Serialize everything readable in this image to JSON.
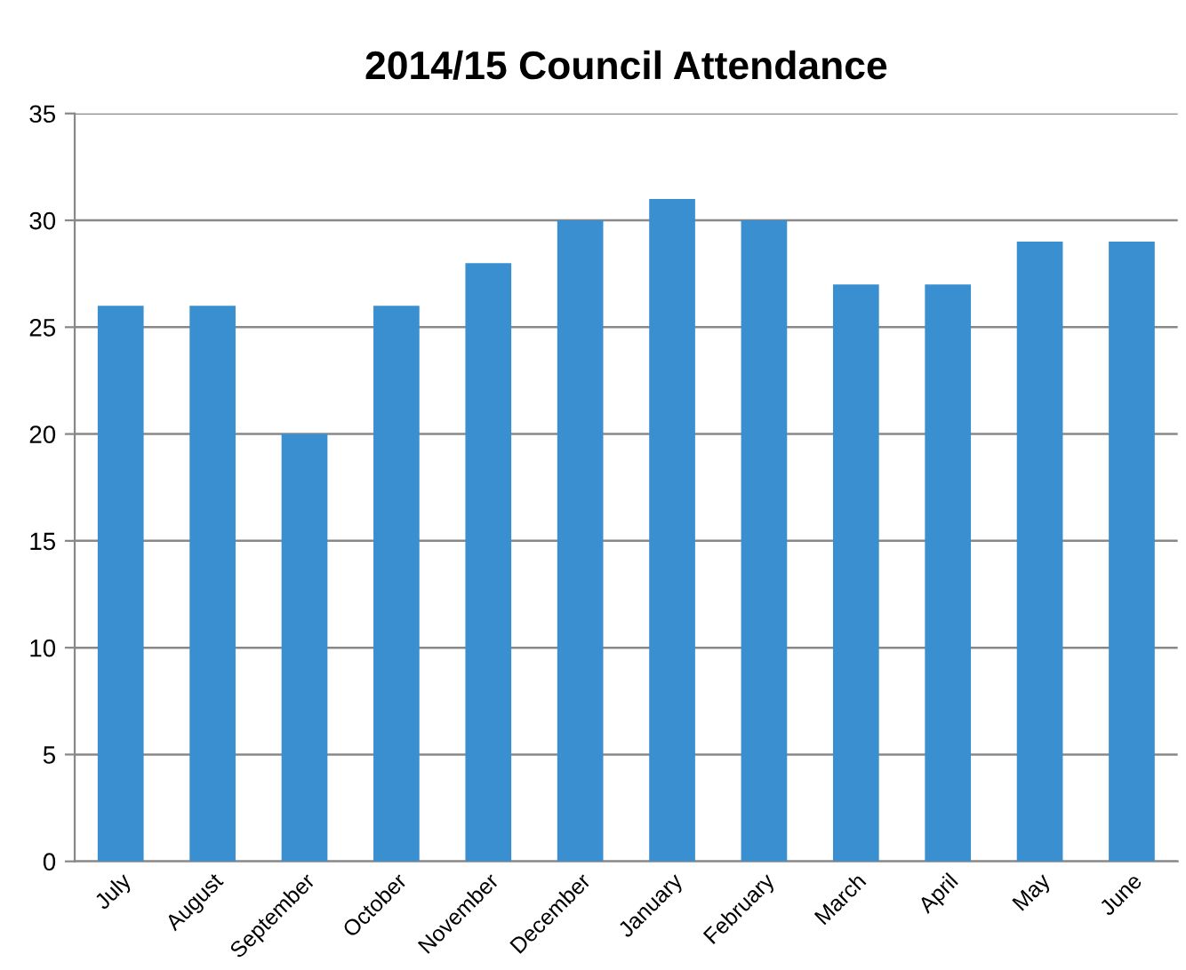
{
  "chart_data": {
    "type": "bar",
    "title": "2014/15 Council Attendance",
    "categories": [
      "July",
      "August",
      "September",
      "October",
      "November",
      "December",
      "January",
      "February",
      "March",
      "April",
      "May",
      "June"
    ],
    "values": [
      26,
      26,
      20,
      26,
      28,
      30,
      31,
      30,
      27,
      27,
      29,
      29
    ],
    "color": "#3a8fd0",
    "ylim": [
      0,
      35
    ],
    "yticks": [
      0,
      5,
      10,
      15,
      20,
      25,
      30,
      35
    ],
    "grid": "y"
  }
}
